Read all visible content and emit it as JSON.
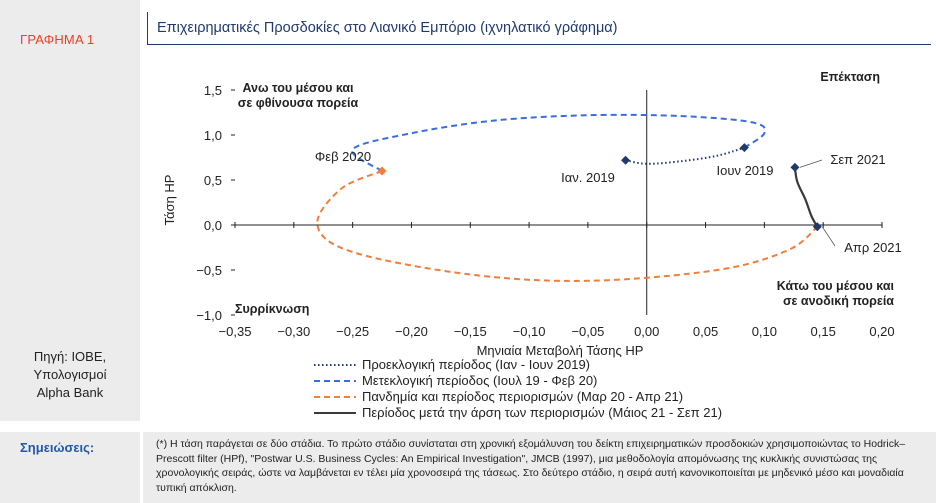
{
  "figure_label": "ΓΡΑΦΗΜΑ 1",
  "source": {
    "line1": "Πηγή: ΙΟΒΕ,",
    "line2": "Υπολογισμοί",
    "line3": "Alpha Bank"
  },
  "notes": {
    "label": "Σημειώσεις:",
    "text": "(*) Η τάση παράγεται σε δύο στάδια. Το πρώτο στάδιο συνίσταται στη χρονική εξομάλυνση του δείκτη επιχειρηματικών προσδοκιών χρησιμοποιώντας το Hodrick–Prescott filter (HPf), \"Postwar U.S. Business Cycles: An Empirical Investigation\", JMCB (1997), μια μεθοδολογία απομόνωσης της κυκλικής συνιστώσας της χρονολογικής σειράς, ώστε να λαμβάνεται εν τέλει μία χρονοσειρά της τάσεως.  Στο δεύτερο στάδιο, η σειρά αυτή κανονικοποιείται με μηδενικό μέσο και μοναδιαία τυπική απόκλιση."
  },
  "chart_data": {
    "type": "line",
    "title": "Επιχειρηματικές Προσδοκίες στο Λιανικό Εμπόριο (ιχνηλατικό γράφημα)",
    "xlabel": "Μηνιαία Μεταβολή  Τάσης HP",
    "ylabel": "Τάση HP",
    "xlim": [
      -0.35,
      0.2
    ],
    "ylim": [
      -1.0,
      1.5
    ],
    "x_ticks": [
      "−0,35",
      "−0,30",
      "−0,25",
      "−0,20",
      "−0,15",
      "−0,10",
      "−0,05",
      "0,00",
      "0,05",
      "0,10",
      "0,15",
      "0,20"
    ],
    "y_ticks": [
      "1,5",
      "1,0",
      "0,5",
      "0,0",
      "−0,5",
      "−1,0"
    ],
    "quadrants": {
      "top_left": [
        "Ανω του μέσου και",
        "σε φθίνουσα πορεία"
      ],
      "top_right": [
        "Επέκταση"
      ],
      "bottom_left": [
        "Συρρίκνωση"
      ],
      "bottom_right": [
        "Κάτω του μέσου και",
        "σε ανοδική πορεία"
      ]
    },
    "annotations": [
      "Ιαν. 2019",
      "Ιουν 2019",
      "Φεβ 2020",
      "Σεπ 2021",
      "Απρ 2021"
    ],
    "series": [
      {
        "name": "Προεκλογική περίοδος (Ιαν - Ιουν 2019)",
        "color": "#1f3a6b",
        "style": "dotted",
        "points": [
          [
            -0.018,
            0.72
          ],
          [
            0.0,
            0.68
          ],
          [
            0.03,
            0.71
          ],
          [
            0.06,
            0.77
          ],
          [
            0.083,
            0.86
          ]
        ]
      },
      {
        "name": "Μετεκλογική περίοδος (Ιουλ 19 - Φεβ 20)",
        "color": "#3a6ee0",
        "style": "dashed",
        "points": [
          [
            0.083,
            0.86
          ],
          [
            0.1,
            1.02
          ],
          [
            0.09,
            1.14
          ],
          [
            0.03,
            1.21
          ],
          [
            -0.05,
            1.22
          ],
          [
            -0.13,
            1.16
          ],
          [
            -0.2,
            1.02
          ],
          [
            -0.25,
            0.84
          ],
          [
            -0.225,
            0.6
          ]
        ]
      },
      {
        "name": "Πανδημία και περίοδος περιορισμών (Μαρ 20 - Απρ 21)",
        "color": "#f07f3c",
        "style": "dashed",
        "points": [
          [
            -0.225,
            0.6
          ],
          [
            -0.26,
            0.4
          ],
          [
            -0.28,
            0.0
          ],
          [
            -0.25,
            -0.3
          ],
          [
            -0.15,
            -0.55
          ],
          [
            -0.05,
            -0.62
          ],
          [
            0.06,
            -0.5
          ],
          [
            0.12,
            -0.28
          ],
          [
            0.145,
            -0.02
          ]
        ]
      },
      {
        "name": "Περίοδος μετά την άρση των περιορισμών (Μάιος 21 - Σεπ 21)",
        "color": "#3a3a3a",
        "style": "solid",
        "points": [
          [
            0.145,
            -0.02
          ],
          [
            0.14,
            0.1
          ],
          [
            0.135,
            0.28
          ],
          [
            0.128,
            0.48
          ],
          [
            0.126,
            0.64
          ]
        ]
      }
    ],
    "markers": [
      {
        "label": "Ιαν. 2019",
        "x": -0.018,
        "y": 0.72,
        "color": "#1f3a6b"
      },
      {
        "label": "Ιουν 2019",
        "x": 0.083,
        "y": 0.86,
        "color": "#1f3a6b"
      },
      {
        "label": "Φεβ 2020",
        "x": -0.225,
        "y": 0.6,
        "color": "#f07f3c"
      },
      {
        "label": "Σεπ 2021",
        "x": 0.126,
        "y": 0.64,
        "color": "#1f3a6b"
      },
      {
        "label": "Απρ 2021",
        "x": 0.145,
        "y": -0.02,
        "color": "#1f3a6b"
      }
    ],
    "legend_position": "bottom"
  }
}
